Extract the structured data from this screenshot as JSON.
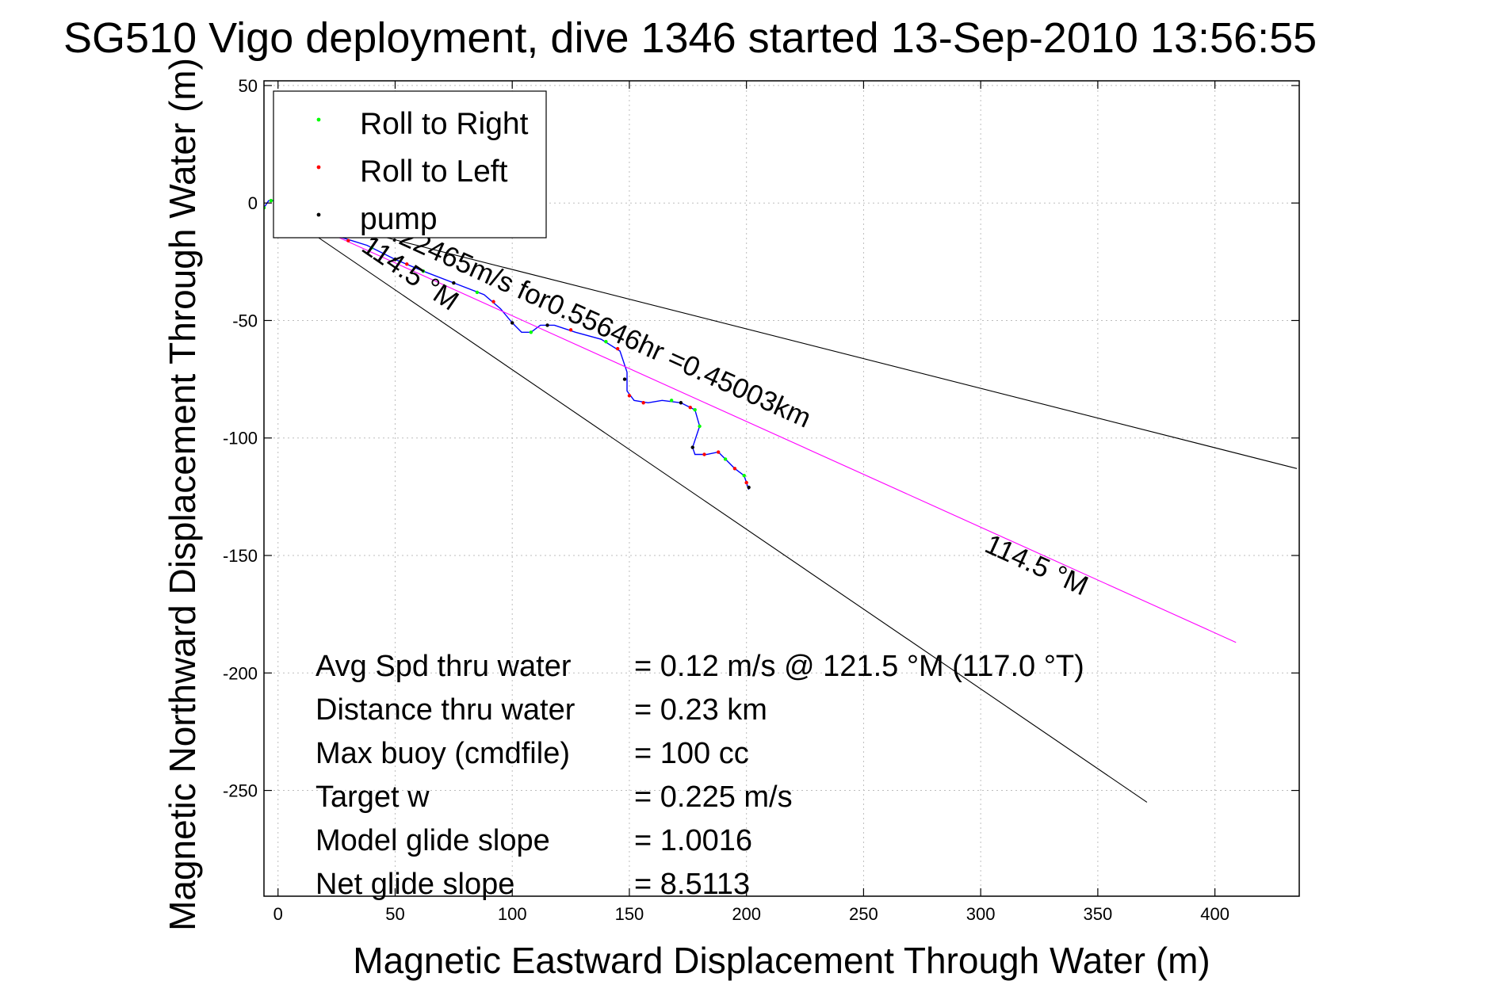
{
  "chart_data": {
    "type": "line",
    "title": "SG510 Vigo deployment, dive 1346 started 13-Sep-2010 13:56:55",
    "xlabel": "Magnetic Eastward Displacement Through Water (m)",
    "ylabel": "Magnetic Northward Displacement Through Water (m)",
    "xlim": [
      -6,
      436
    ],
    "ylim": [
      -295,
      52
    ],
    "x_ticks": [
      0,
      50,
      100,
      150,
      200,
      250,
      300,
      350,
      400
    ],
    "y_ticks": [
      50,
      0,
      -50,
      -100,
      -150,
      -200,
      -250
    ],
    "grid": true,
    "legend": {
      "placement": "top-left",
      "entries": [
        {
          "label": "Roll to Right",
          "color": "#00ff00"
        },
        {
          "label": "Roll to Left",
          "color": "#ff0000"
        },
        {
          "label": "pump",
          "color": "#000000"
        }
      ]
    },
    "series": [
      {
        "kind": "track",
        "color": "#0000ff",
        "points": [
          [
            -6,
            -2
          ],
          [
            -4,
            1
          ],
          [
            -2,
            1
          ],
          [
            0,
            -2
          ],
          [
            5,
            -6
          ],
          [
            15,
            -10
          ],
          [
            25,
            -14
          ],
          [
            38,
            -18
          ],
          [
            50,
            -24
          ],
          [
            62,
            -29
          ],
          [
            75,
            -34
          ],
          [
            88,
            -39
          ],
          [
            95,
            -45
          ],
          [
            100,
            -51
          ],
          [
            104,
            -55
          ],
          [
            108,
            -55
          ],
          [
            112,
            -52
          ],
          [
            118,
            -52
          ],
          [
            127,
            -55
          ],
          [
            138,
            -58
          ],
          [
            146,
            -63
          ],
          [
            149,
            -72
          ],
          [
            149,
            -80
          ],
          [
            152,
            -84
          ],
          [
            158,
            -85
          ],
          [
            164,
            -84
          ],
          [
            172,
            -85
          ],
          [
            178,
            -88
          ],
          [
            180,
            -95
          ],
          [
            177,
            -104
          ],
          [
            178,
            -107
          ],
          [
            183,
            -107
          ],
          [
            188,
            -106
          ],
          [
            191,
            -109
          ],
          [
            195,
            -113
          ],
          [
            199,
            -116
          ],
          [
            201,
            -122
          ]
        ]
      },
      {
        "kind": "line",
        "name": "",
        "color": "#000000",
        "points": [
          [
            0,
            -3
          ],
          [
            435,
            -113
          ]
        ]
      },
      {
        "kind": "line",
        "name": "",
        "color": "#000000",
        "points": [
          [
            0,
            -3
          ],
          [
            371,
            -255
          ]
        ]
      },
      {
        "kind": "line",
        "name": "",
        "color": "#ff00ff",
        "points": [
          [
            0,
            -3
          ],
          [
            409,
            -187
          ]
        ]
      },
      {
        "kind": "markers",
        "name": "Roll to Right",
        "color": "#00ff00",
        "points": [
          [
            -6,
            -2
          ],
          [
            -3,
            1
          ],
          [
            0,
            -2
          ],
          [
            15,
            -10
          ],
          [
            40,
            -19
          ],
          [
            62,
            -29
          ],
          [
            85,
            -38
          ],
          [
            108,
            -55
          ],
          [
            140,
            -59
          ],
          [
            168,
            -84
          ],
          [
            178,
            -88
          ],
          [
            180,
            -95
          ],
          [
            191,
            -109
          ],
          [
            199,
            -116
          ]
        ]
      },
      {
        "kind": "markers",
        "name": "Roll to Left",
        "color": "#ff0000",
        "points": [
          [
            30,
            -16
          ],
          [
            55,
            -26
          ],
          [
            92,
            -42
          ],
          [
            125,
            -54
          ],
          [
            145,
            -62
          ],
          [
            150,
            -82
          ],
          [
            156,
            -85
          ],
          [
            176,
            -87
          ],
          [
            182,
            -107
          ],
          [
            188,
            -106
          ],
          [
            195,
            -113
          ],
          [
            200,
            -119
          ]
        ]
      },
      {
        "kind": "markers",
        "name": "pump",
        "color": "#000000",
        "points": [
          [
            5,
            -6
          ],
          [
            25,
            -14
          ],
          [
            50,
            -24
          ],
          [
            75,
            -34
          ],
          [
            100,
            -51
          ],
          [
            115,
            -52
          ],
          [
            148,
            -75
          ],
          [
            172,
            -85
          ],
          [
            177,
            -104
          ],
          [
            201,
            -121
          ]
        ]
      }
    ],
    "annotations": [
      {
        "text": "0.22465m/s for0.55646hr =0.45003km",
        "at": [
          42,
          -13
        ],
        "angle": 24.4
      },
      {
        "text": "114.5 °M",
        "at": [
          35,
          -20
        ],
        "angle": 34.2
      },
      {
        "text": "114.5 °M",
        "at": [
          301,
          -148
        ],
        "angle": 24.4
      }
    ],
    "stats": [
      {
        "label": "Avg Spd thru water",
        "value": "=  0.12 m/s @ 121.5  °M (117.0 °T)"
      },
      {
        "label": "Distance thru water",
        "value": "=  0.23 km"
      },
      {
        "label": "Max buoy (cmdfile)",
        "value": "= 100 cc"
      },
      {
        "label": "Target w",
        "value": "= 0.225 m/s"
      },
      {
        "label": "Model glide slope",
        "value": "= 1.0016"
      },
      {
        "label": "Net glide slope",
        "value": "= 8.5113"
      }
    ]
  }
}
